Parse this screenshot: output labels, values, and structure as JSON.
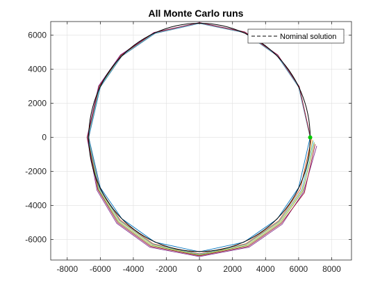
{
  "chart_data": {
    "type": "line",
    "title": "All Monte Carlo runs",
    "xlabel": "",
    "ylabel": "",
    "xlim": [
      -9000,
      9200
    ],
    "ylim": [
      -7200,
      6800
    ],
    "xticks": [
      -8000,
      -6000,
      -4000,
      -2000,
      0,
      2000,
      4000,
      6000,
      8000
    ],
    "yticks": [
      -6000,
      -4000,
      -2000,
      0,
      2000,
      4000,
      6000
    ],
    "xtick_labels": [
      "-8000",
      "-6000",
      "-4000",
      "-2000",
      "0",
      "2000",
      "4000",
      "6000",
      "8000"
    ],
    "ytick_labels": [
      "-6000",
      "-4000",
      "-2000",
      "0",
      "2000",
      "4000",
      "6000"
    ],
    "grid": true,
    "legend": {
      "location": "top-right",
      "entries": [
        "Nominal solution"
      ]
    },
    "nominal_radius": 6700,
    "start_point": {
      "x": 6700,
      "y": 0
    },
    "start_marker_color": "#00cc00",
    "series": [
      {
        "color": "#0072BD",
        "values": [
          [
            6700,
            0
          ],
          [
            6000,
            -2950
          ],
          [
            4700,
            -4800
          ],
          [
            2700,
            -6150
          ],
          [
            0,
            -6720
          ],
          [
            -2700,
            -6150
          ],
          [
            -4700,
            -4770
          ],
          [
            -6000,
            -2950
          ],
          [
            -6700,
            0
          ],
          [
            -6000,
            2950
          ],
          [
            -4700,
            4770
          ],
          [
            -2700,
            6100
          ],
          [
            0,
            6690
          ],
          [
            2700,
            6150
          ],
          [
            4700,
            4800
          ],
          [
            6000,
            2950
          ],
          [
            6700,
            0
          ]
        ]
      },
      {
        "color": "#D95319",
        "values": [
          [
            6800,
            0
          ],
          [
            6100,
            -3050
          ],
          [
            4800,
            -4900
          ],
          [
            2800,
            -6250
          ],
          [
            0,
            -6830
          ],
          [
            -2800,
            -6250
          ],
          [
            -4800,
            -4850
          ],
          [
            -6050,
            -2980
          ],
          [
            -6720,
            0
          ],
          [
            -6020,
            2960
          ],
          [
            -4710,
            4780
          ],
          [
            -2710,
            6110
          ],
          [
            0,
            6700
          ],
          [
            2710,
            6160
          ],
          [
            4710,
            4810
          ],
          [
            6010,
            2960
          ],
          [
            6700,
            0
          ]
        ]
      },
      {
        "color": "#EDB120",
        "values": [
          [
            6850,
            -150
          ],
          [
            6200,
            -3100
          ],
          [
            4850,
            -4950
          ],
          [
            2850,
            -6300
          ],
          [
            0,
            -6880
          ],
          [
            -2850,
            -6300
          ],
          [
            -4850,
            -4900
          ],
          [
            -6080,
            -3000
          ],
          [
            -6740,
            0
          ],
          [
            -6030,
            2970
          ],
          [
            -4720,
            4790
          ],
          [
            -2720,
            6120
          ],
          [
            0,
            6710
          ],
          [
            2720,
            6170
          ],
          [
            4720,
            4820
          ],
          [
            6020,
            2970
          ],
          [
            6710,
            0
          ]
        ]
      },
      {
        "color": "#7E2F8E",
        "values": [
          [
            7100,
            -500
          ],
          [
            6300,
            -3200
          ],
          [
            5000,
            -5100
          ],
          [
            3000,
            -6450
          ],
          [
            0,
            -7000
          ],
          [
            -3000,
            -6450
          ],
          [
            -5000,
            -5050
          ],
          [
            -6200,
            -3100
          ],
          [
            -6800,
            0
          ],
          [
            -6100,
            3020
          ],
          [
            -4780,
            4840
          ],
          [
            -2750,
            6160
          ],
          [
            0,
            6740
          ],
          [
            2750,
            6190
          ],
          [
            4740,
            4840
          ],
          [
            6040,
            2980
          ],
          [
            6720,
            0
          ]
        ]
      },
      {
        "color": "#77AC30",
        "values": [
          [
            6950,
            -300
          ],
          [
            6250,
            -3150
          ],
          [
            4900,
            -5000
          ],
          [
            2900,
            -6350
          ],
          [
            0,
            -6920
          ],
          [
            -2900,
            -6350
          ],
          [
            -4900,
            -4950
          ],
          [
            -6120,
            -3030
          ],
          [
            -6760,
            0
          ],
          [
            -6050,
            2985
          ],
          [
            -4735,
            4800
          ],
          [
            -2730,
            6130
          ],
          [
            0,
            6720
          ],
          [
            2730,
            6175
          ],
          [
            4730,
            4825
          ],
          [
            6030,
            2975
          ],
          [
            6715,
            0
          ]
        ]
      },
      {
        "color": "#4DBEEE",
        "values": [
          [
            6900,
            -200
          ],
          [
            6180,
            -3080
          ],
          [
            4830,
            -4930
          ],
          [
            2830,
            -6280
          ],
          [
            0,
            -6860
          ],
          [
            -2830,
            -6280
          ],
          [
            -4830,
            -4880
          ],
          [
            -6070,
            -2990
          ],
          [
            -6730,
            0
          ],
          [
            -6025,
            2965
          ],
          [
            -4715,
            4785
          ],
          [
            -2715,
            6115
          ],
          [
            0,
            6705
          ],
          [
            2715,
            6165
          ],
          [
            4715,
            4815
          ],
          [
            6015,
            2965
          ],
          [
            6705,
            0
          ]
        ]
      },
      {
        "color": "#A2142F",
        "values": [
          [
            7000,
            -400
          ],
          [
            6350,
            -3250
          ],
          [
            4950,
            -5050
          ],
          [
            2950,
            -6400
          ],
          [
            0,
            -6950
          ],
          [
            -2950,
            -6400
          ],
          [
            -4950,
            -5000
          ],
          [
            -6150,
            -3060
          ],
          [
            -6780,
            0
          ],
          [
            -6070,
            3000
          ],
          [
            -4750,
            4820
          ],
          [
            -2740,
            6145
          ],
          [
            0,
            6730
          ],
          [
            2740,
            6180
          ],
          [
            4735,
            4830
          ],
          [
            6035,
            2978
          ],
          [
            6718,
            0
          ]
        ]
      }
    ]
  }
}
